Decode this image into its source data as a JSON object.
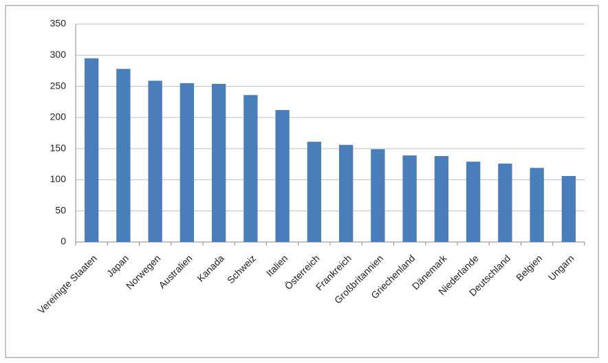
{
  "chart_data": {
    "type": "bar",
    "categories": [
      "Vereinigte Staaten",
      "Japan",
      "Norwegen",
      "Australien",
      "Kanada",
      "Schweiz",
      "Italien",
      "Österreich",
      "Frankreich",
      "Großbritannien",
      "Griechenland",
      "Dänemark",
      "Niederlande",
      "Deutschland",
      "Belgien",
      "Ungarn"
    ],
    "values": [
      295,
      278,
      259,
      255,
      254,
      236,
      212,
      161,
      156,
      149,
      139,
      138,
      129,
      126,
      119,
      106
    ],
    "color": "#4a7ebb",
    "ylim": [
      0,
      350
    ],
    "yticks": [
      0,
      50,
      100,
      150,
      200,
      250,
      300,
      350
    ],
    "grid": true
  }
}
